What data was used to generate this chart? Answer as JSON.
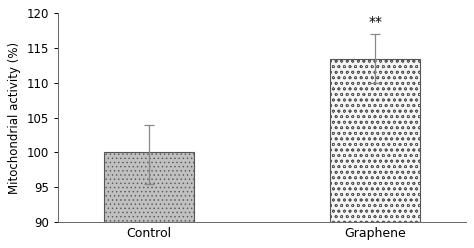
{
  "categories": [
    "Control",
    "Graphene"
  ],
  "values": [
    100.0,
    113.5
  ],
  "errors_upper": [
    4.0,
    3.5
  ],
  "errors_lower": [
    4.5,
    3.5
  ],
  "ylim": [
    90,
    120
  ],
  "yticks": [
    90,
    95,
    100,
    105,
    110,
    115,
    120
  ],
  "ylabel": "Mitochondrial activity (%)",
  "bar_width": 0.4,
  "bar_facecolors": [
    "#b0b0b0",
    "#f0f0f0"
  ],
  "bar_edgecolors": [
    "#444444",
    "#444444"
  ],
  "hatch_patterns": [
    "xxx",
    "ooo"
  ],
  "error_color": "#888888",
  "significance_label": "**",
  "significance_bar_index": 1,
  "background_color": "#ffffff",
  "ylabel_fontsize": 8.5,
  "tick_fontsize": 8.5,
  "sig_fontsize": 10,
  "xticklabel_fontsize": 9,
  "border_color": "#aaaaaa"
}
